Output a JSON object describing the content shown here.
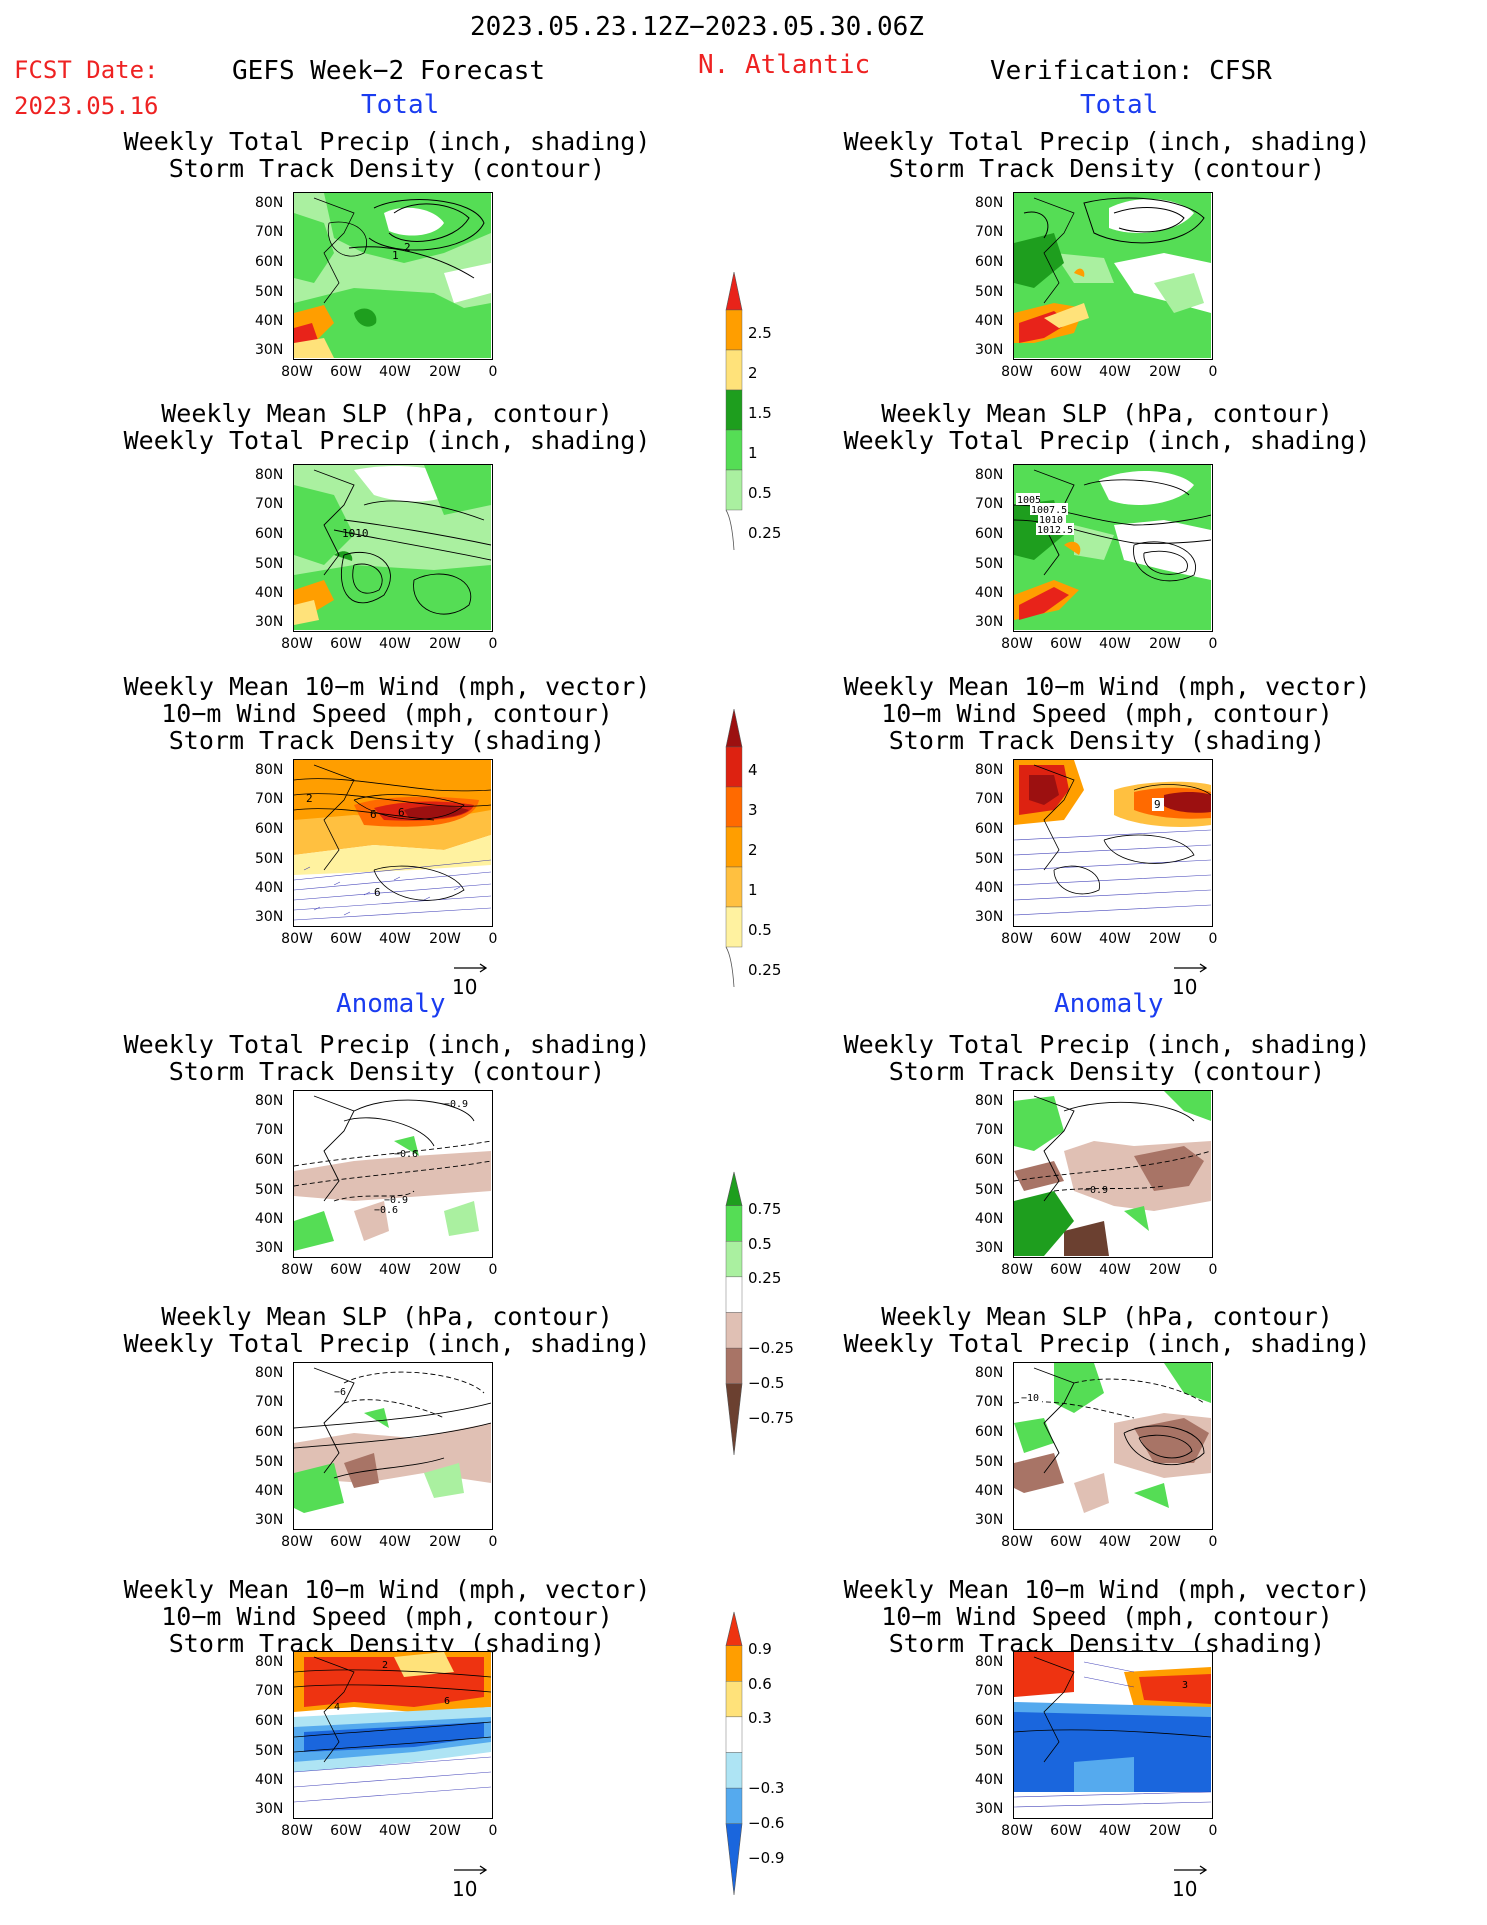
{
  "header": {
    "date_range": "2023.05.23.12Z−2023.05.30.06Z",
    "fcst_date_label": "FCST Date:",
    "fcst_date_value": "2023.05.16",
    "left_title": "GEFS Week−2 Forecast",
    "region": "N. Atlantic",
    "right_title": "Verification: CFSR"
  },
  "sections": {
    "total": "Total",
    "anomaly": "Anomaly"
  },
  "panel_titles": {
    "precip_track": "Weekly Total Precip (inch, shading)\nStorm Track Density (contour)",
    "slp_precip": "Weekly Mean SLP (hPa, contour)\nWeekly Total Precip (inch, shading)",
    "wind_track": "Weekly Mean 10−m Wind (mph, vector)\n10−m Wind Speed (mph, contour)\nStorm Track Density (shading)"
  },
  "axes": {
    "lat_ticks": [
      "80N",
      "70N",
      "60N",
      "50N",
      "40N",
      "30N"
    ],
    "lon_ticks": [
      "80W",
      "60W",
      "40W",
      "20W",
      "0"
    ]
  },
  "vector_ref": "10",
  "colorbars": {
    "total_precip": {
      "labels": [
        "2.5",
        "2",
        "1.5",
        "1",
        "0.5",
        "0.25"
      ],
      "colors": [
        "#e8231a",
        "#ff9e00",
        "#ffe27a",
        "#1e9e1e",
        "#55dd55",
        "#aaf0a0"
      ]
    },
    "total_track": {
      "labels": [
        "4",
        "3",
        "2",
        "1",
        "0.5",
        "0.25"
      ],
      "colors": [
        "#9c1010",
        "#dd2211",
        "#ff6a00",
        "#ff9e00",
        "#ffc040",
        "#fff2a0"
      ]
    },
    "anom_precip": {
      "labels": [
        "0.75",
        "0.5",
        "0.25",
        "−0.25",
        "−0.5",
        "−0.75"
      ],
      "colors": [
        "#1e9e1e",
        "#55dd55",
        "#aaf0a0",
        "#ffffff",
        "#e0c0b4",
        "#a87466",
        "#6b4030"
      ]
    },
    "anom_track": {
      "labels": [
        "0.9",
        "0.6",
        "0.3",
        "−0.3",
        "−0.6",
        "−0.9"
      ],
      "colors": [
        "#ee3311",
        "#ff9e00",
        "#ffe27a",
        "#ffffff",
        "#aee4f4",
        "#55aaee",
        "#1a66dd"
      ]
    }
  },
  "contour_labels": {
    "l_precip_total": [
      "1",
      "2"
    ],
    "l_slp_total": [
      "1010"
    ],
    "l_wind_total": [
      "2",
      "6",
      "6",
      "6"
    ],
    "r_slp_total": [
      "1005",
      "1007.5",
      "1010",
      "1012.5"
    ],
    "r_wind_total": [
      "9"
    ],
    "l_precip_anom": [
      "−0.9",
      "−0.6",
      "−0.9",
      "−0.6"
    ],
    "r_precip_anom": [
      "−0.9"
    ],
    "l_slp_anom": [
      "−6"
    ],
    "r_slp_anom": [
      "−10"
    ],
    "l_wind_anom": [
      "2",
      "4",
      "6"
    ],
    "r_wind_anom": [
      "3"
    ]
  }
}
